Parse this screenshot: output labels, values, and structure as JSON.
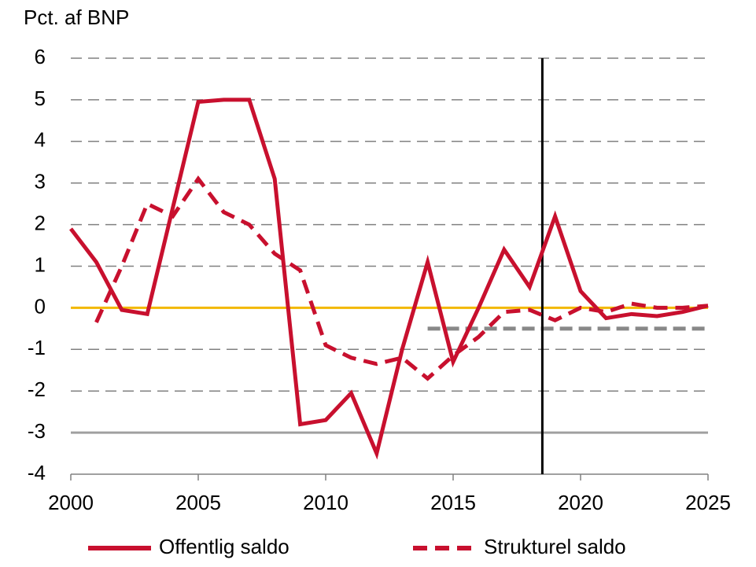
{
  "chart_data": {
    "type": "line",
    "y_label": "Pct. af BNP",
    "x": [
      2000,
      2001,
      2002,
      2003,
      2004,
      2005,
      2006,
      2007,
      2008,
      2009,
      2010,
      2011,
      2012,
      2013,
      2014,
      2015,
      2016,
      2017,
      2018,
      2019,
      2020,
      2021,
      2022,
      2023,
      2024,
      2025
    ],
    "series": [
      {
        "name": "Offentlig saldo",
        "color": "#c8102e",
        "dash": false,
        "values": [
          1.9,
          1.1,
          -0.05,
          -0.15,
          2.4,
          4.95,
          5.0,
          5.0,
          3.1,
          -2.8,
          -2.7,
          -2.05,
          -3.5,
          -1.0,
          1.1,
          -1.3,
          0.0,
          1.4,
          0.5,
          2.2,
          0.4,
          -0.25,
          -0.15,
          -0.2,
          -0.1,
          0.05
        ]
      },
      {
        "name": "Strukturel saldo",
        "color": "#c8102e",
        "dash": true,
        "values": [
          null,
          -0.35,
          1.0,
          2.5,
          2.2,
          3.1,
          2.3,
          2.0,
          1.3,
          0.9,
          -0.9,
          -1.2,
          -1.35,
          -1.2,
          -1.7,
          -1.15,
          -0.7,
          -0.1,
          -0.05,
          -0.3,
          0.0,
          -0.1,
          0.1,
          0.0,
          0.0,
          0.05
        ]
      }
    ],
    "reference_lines": [
      {
        "value": -3,
        "color": "#a0a0a0",
        "dash": false
      },
      {
        "value": 0,
        "color": "#f2b800",
        "dash": false
      },
      {
        "value": -0.5,
        "color": "#888888",
        "dash": true,
        "from": 2014,
        "to": 2025
      }
    ],
    "vertical_line": {
      "value": 2018.5,
      "color": "#000000"
    },
    "xlim": [
      2000,
      2025
    ],
    "xticks": [
      2000,
      2005,
      2010,
      2015,
      2020,
      2025
    ],
    "ylim": [
      -4,
      6
    ],
    "yticks": [
      -4,
      -3,
      -2,
      -1,
      0,
      1,
      2,
      3,
      4,
      5,
      6
    ],
    "grid": true,
    "legend": "bottom"
  }
}
